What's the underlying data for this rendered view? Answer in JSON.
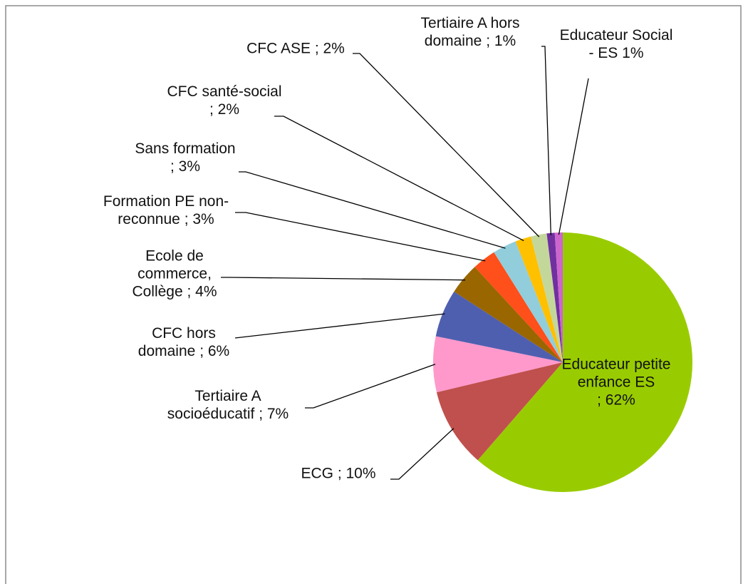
{
  "chart_data": {
    "type": "pie",
    "categories": [
      "Educateur petite enfance ES",
      "ECG",
      "Tertiaire A socioéducatif",
      "CFC hors domaine",
      "Ecole de commerce, Collège",
      "Formation PE non-reconnue",
      "Sans formation",
      "CFC santé-social",
      "CFC ASE",
      "Tertiaire A hors domaine",
      "Educateur Social - ES"
    ],
    "values": [
      62,
      10,
      7,
      6,
      4,
      3,
      3,
      2,
      2,
      1,
      1
    ],
    "value_labels": [
      "; 62%",
      "; 10%",
      " ; 7%",
      "; 6%",
      "; 4%",
      "; 3%",
      "; 3%",
      "; 2%",
      "; 2%",
      "; 1%",
      "1%"
    ],
    "colors": [
      "#99cc00",
      "#c0504d",
      "#ff99cc",
      "#4f5fb0",
      "#996600",
      "#ff4f1a",
      "#92cddc",
      "#ffc000",
      "#c4d79b",
      "#7030a0",
      "#cc66cc"
    ]
  }
}
